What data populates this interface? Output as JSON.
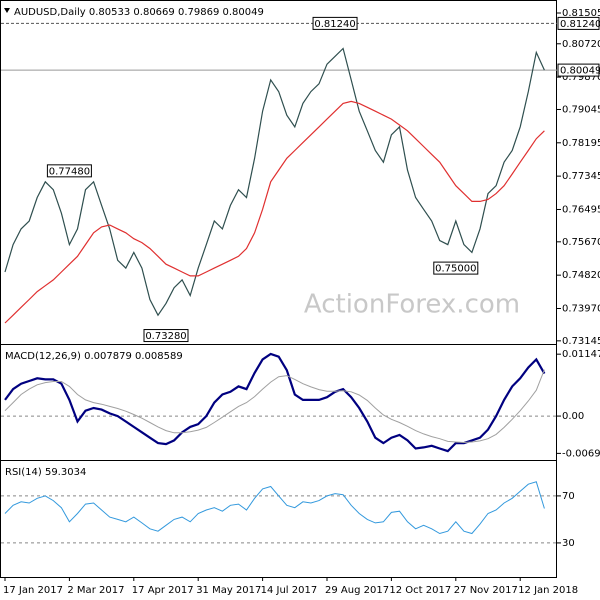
{
  "chart_data": [
    {
      "type": "line",
      "title": "AUDUSD,Daily 0.80533 0.80669 0.79869 0.80049",
      "watermark": "ActionForex.com",
      "categories": [
        "17 Jan 2017",
        null,
        null,
        null,
        null,
        null,
        null,
        null,
        "2 Mar 2017",
        null,
        null,
        null,
        null,
        null,
        null,
        null,
        "17 Apr 2017",
        null,
        null,
        null,
        null,
        null,
        null,
        null,
        "31 May 2017",
        null,
        null,
        null,
        null,
        null,
        null,
        null,
        "14 Jul 2017",
        null,
        null,
        null,
        null,
        null,
        null,
        null,
        "29 Aug 2017",
        null,
        null,
        null,
        null,
        null,
        null,
        null,
        "12 Oct 2017",
        null,
        null,
        null,
        null,
        null,
        null,
        null,
        "27 Nov 2017",
        null,
        null,
        null,
        null,
        null,
        null,
        null,
        "12 Jan 2018",
        null,
        null,
        null
      ],
      "ylim": [
        0.7309,
        0.8176
      ],
      "yticks": [
        0.81505,
        {
          "value": 0.8072,
          "label": "0.80720"
        },
        {
          "value": 0.7987,
          "label": "0.79870"
        },
        0.79045,
        0.78195,
        0.77345,
        0.76495,
        {
          "value": 0.7567,
          "label": "0.75670"
        },
        {
          "value": 0.7482,
          "label": "0.74820"
        },
        {
          "value": 0.7397,
          "label": "0.73970"
        },
        0.73145
      ],
      "series": [
        {
          "name": "AUDUSD",
          "color": "#2f4f4f",
          "values": [
            0.749,
            0.756,
            0.76,
            0.762,
            0.768,
            0.772,
            0.77,
            0.764,
            0.756,
            0.76,
            0.77,
            0.772,
            0.766,
            0.76,
            0.752,
            0.75,
            0.754,
            0.75,
            0.742,
            0.738,
            0.741,
            0.745,
            0.747,
            0.743,
            0.75,
            0.756,
            0.762,
            0.76,
            0.766,
            0.77,
            0.768,
            0.778,
            0.79,
            0.798,
            0.795,
            0.789,
            0.786,
            0.792,
            0.795,
            0.797,
            0.802,
            0.804,
            0.806,
            0.798,
            0.79,
            0.785,
            0.78,
            0.777,
            0.784,
            0.786,
            0.775,
            0.768,
            0.765,
            0.762,
            0.757,
            0.756,
            0.762,
            0.756,
            0.754,
            0.76,
            0.769,
            0.771,
            0.777,
            0.78,
            0.786,
            0.795,
            0.805,
            0.8005
          ]
        },
        {
          "name": "MA",
          "color": "#e03030",
          "values": [
            0.736,
            0.738,
            0.74,
            0.742,
            0.744,
            0.7455,
            0.747,
            0.749,
            0.751,
            0.753,
            0.756,
            0.759,
            0.7605,
            0.761,
            0.76,
            0.759,
            0.7575,
            0.7565,
            0.755,
            0.753,
            0.751,
            0.75,
            0.749,
            0.748,
            0.748,
            0.749,
            0.75,
            0.751,
            0.752,
            0.753,
            0.755,
            0.759,
            0.765,
            0.772,
            0.775,
            0.778,
            0.78,
            0.782,
            0.784,
            0.786,
            0.788,
            0.79,
            0.792,
            0.7925,
            0.792,
            0.791,
            0.79,
            0.789,
            0.788,
            0.7865,
            0.785,
            0.783,
            0.781,
            0.779,
            0.777,
            0.774,
            0.771,
            0.769,
            0.767,
            0.767,
            0.7675,
            0.769,
            0.771,
            0.774,
            0.777,
            0.78,
            0.783,
            0.785
          ]
        }
      ],
      "annotations": [
        {
          "label": "0.81240",
          "value": 0.8124,
          "index": 41
        },
        {
          "label": "0.77480",
          "value": 0.7748,
          "index": 8
        },
        {
          "label": "0.73280",
          "value": 0.7328,
          "index": 20
        },
        {
          "label": "0.75000",
          "value": 0.75,
          "index": 56
        }
      ],
      "price_lines": [
        {
          "label": "0.81240",
          "value": 0.8124,
          "dashed": true
        },
        {
          "label": "0.80049",
          "value": 0.80049,
          "dashed": false
        }
      ]
    },
    {
      "type": "line",
      "title": "MACD(12,26,9) 0.007879 0.008589",
      "ylim": [
        -0.00814,
        0.0128
      ],
      "yticks": [
        0.011471,
        {
          "value": 0,
          "label": "0.00"
        },
        -0.006913
      ],
      "levels": [
        0
      ],
      "series": [
        {
          "name": "MACD",
          "color": "#000080",
          "width": 2.2,
          "values": [
            0.003,
            0.005,
            0.006,
            0.0065,
            0.007,
            0.0068,
            0.0068,
            0.006,
            0.003,
            -0.001,
            0.001,
            0.0015,
            0.0012,
            0.0005,
            0,
            -0.001,
            -0.002,
            -0.003,
            -0.004,
            -0.005,
            -0.0052,
            -0.0045,
            -0.003,
            -0.002,
            -0.0015,
            0,
            0.0025,
            0.004,
            0.0045,
            0.0055,
            0.005,
            0.008,
            0.0105,
            0.0115,
            0.011,
            0.0085,
            0.004,
            0.003,
            0.003,
            0.003,
            0.0035,
            0.0045,
            0.005,
            0.0035,
            0.0015,
            -0.001,
            -0.004,
            -0.005,
            -0.004,
            -0.0035,
            -0.0045,
            -0.006,
            -0.0058,
            -0.0055,
            -0.006,
            -0.0065,
            -0.005,
            -0.005,
            -0.0045,
            -0.004,
            -0.0025,
            0,
            0.003,
            0.0055,
            0.007,
            0.009,
            0.0105,
            0.007879
          ]
        },
        {
          "name": "Signal",
          "color": "#a0a0a0",
          "width": 1,
          "values": [
            0.001,
            0.0025,
            0.004,
            0.005,
            0.0058,
            0.0062,
            0.0064,
            0.0064,
            0.0055,
            0.004,
            0.003,
            0.0025,
            0.0022,
            0.0018,
            0.0014,
            0.0009,
            0.0003,
            -0.0004,
            -0.0012,
            -0.002,
            -0.0027,
            -0.0031,
            -0.0031,
            -0.0029,
            -0.0026,
            -0.0021,
            -0.0012,
            -0.0002,
            0.0008,
            0.0018,
            0.0025,
            0.0036,
            0.005,
            0.0063,
            0.0073,
            0.0075,
            0.0068,
            0.006,
            0.0054,
            0.0049,
            0.0046,
            0.0046,
            0.0047,
            0.0045,
            0.0039,
            0.0029,
            0.0015,
            0.0002,
            -0.0006,
            -0.0012,
            -0.0019,
            -0.0027,
            -0.0033,
            -0.0038,
            -0.0042,
            -0.0047,
            -0.0048,
            -0.0049,
            -0.0048,
            -0.0046,
            -0.0042,
            -0.0034,
            -0.0021,
            -0.0006,
            0.001,
            0.0028,
            0.0048,
            0.008589
          ]
        }
      ]
    },
    {
      "type": "line",
      "title": "RSI(14) 59.3034",
      "ylim": [
        1,
        98
      ],
      "yticks": [
        70,
        30
      ],
      "levels": [
        70,
        30
      ],
      "series": [
        {
          "name": "RSI",
          "color": "#3399dd",
          "width": 1,
          "values": [
            55,
            62,
            65,
            64,
            68,
            70,
            66,
            60,
            48,
            55,
            63,
            64,
            58,
            52,
            50,
            48,
            52,
            47,
            42,
            40,
            45,
            50,
            52,
            48,
            55,
            58,
            60,
            57,
            62,
            63,
            58,
            68,
            76,
            78,
            70,
            62,
            60,
            65,
            64,
            66,
            70,
            72,
            71,
            62,
            55,
            50,
            47,
            48,
            56,
            57,
            48,
            42,
            45,
            42,
            38,
            40,
            48,
            40,
            38,
            46,
            55,
            58,
            64,
            68,
            74,
            80,
            82,
            59.3034
          ]
        }
      ]
    }
  ]
}
